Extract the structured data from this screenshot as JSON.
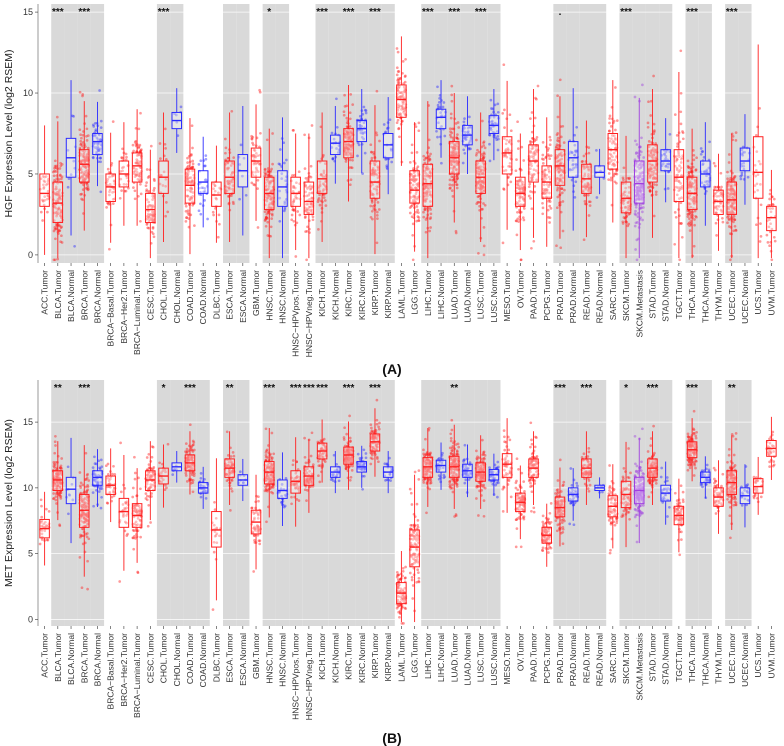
{
  "colors": {
    "tumor": "#ff2020",
    "normal": "#2b2bff",
    "metastasis": "#a040e0",
    "shade": "#d9d9d9",
    "grid": "#ececec"
  },
  "chart_data": [
    {
      "type": "box",
      "panel_label": "(A)",
      "ylabel": "HGF Expression Level (log2 RSEM)",
      "ylim": [
        -0.5,
        15.5
      ],
      "yticks": [
        "0",
        "5",
        "10",
        "15"
      ],
      "categories": [
        "ACC.Tumor",
        "BLCA.Tumor",
        "BLCA.Normal",
        "BRCA.Tumor",
        "BRCA.Normal",
        "BRCA−Basal.Tumor",
        "BRCA−Her2.Tumor",
        "BRCA−Luminal.Tumor",
        "CESC.Tumor",
        "CHOL.Tumor",
        "CHOL.Normal",
        "COAD.Tumor",
        "COAD.Normal",
        "DLBC.Tumor",
        "ESCA.Tumor",
        "ESCA.Normal",
        "GBM.Tumor",
        "HNSC.Tumor",
        "HNSC.Normal",
        "HNSC−HPVpos.Tumor",
        "HNSC−HPVneg.Tumor",
        "KICH.Tumor",
        "KICH.Normal",
        "KIRC.Tumor",
        "KIRC.Normal",
        "KIRP.Tumor",
        "KIRP.Normal",
        "LAML.Tumor",
        "LGG.Tumor",
        "LIHC.Tumor",
        "LIHC.Normal",
        "LUAD.Tumor",
        "LUAD.Normal",
        "LUSC.Tumor",
        "LUSC.Normal",
        "MESO.Tumor",
        "OV.Tumor",
        "PAAD.Tumor",
        "PCPG.Tumor",
        "PRAD.Tumor",
        "PRAD.Normal",
        "READ.Tumor",
        "READ.Normal",
        "SARC.Tumor",
        "SKCM.Tumor",
        "SKCM.Metastasis",
        "STAD.Tumor",
        "STAD.Normal",
        "TGCT.Tumor",
        "THCA.Tumor",
        "THCA.Normal",
        "THYM.Tumor",
        "UCEC.Tumor",
        "UCEC.Normal",
        "UCS.Tumor",
        "UVM.Tumor"
      ],
      "types": [
        "T",
        "T",
        "N",
        "T",
        "N",
        "T",
        "T",
        "T",
        "T",
        "T",
        "N",
        "T",
        "N",
        "T",
        "T",
        "N",
        "T",
        "T",
        "N",
        "T",
        "T",
        "T",
        "N",
        "T",
        "N",
        "T",
        "N",
        "T",
        "T",
        "T",
        "N",
        "T",
        "N",
        "T",
        "N",
        "T",
        "T",
        "T",
        "T",
        "T",
        "N",
        "T",
        "N",
        "T",
        "T",
        "M",
        "T",
        "N",
        "T",
        "T",
        "N",
        "T",
        "T",
        "N",
        "T",
        "T"
      ],
      "shaded": [
        false,
        true,
        true,
        true,
        true,
        false,
        false,
        false,
        false,
        true,
        true,
        false,
        false,
        false,
        true,
        true,
        false,
        true,
        true,
        false,
        false,
        true,
        true,
        true,
        true,
        true,
        true,
        false,
        false,
        true,
        true,
        true,
        true,
        true,
        true,
        false,
        false,
        false,
        false,
        true,
        true,
        true,
        true,
        false,
        true,
        true,
        true,
        true,
        false,
        true,
        true,
        false,
        true,
        true,
        false,
        false
      ],
      "q1": [
        3.0,
        2.0,
        4.8,
        4.5,
        6.2,
        3.3,
        4.2,
        4.5,
        2.0,
        3.8,
        7.8,
        3.2,
        3.8,
        3.0,
        3.8,
        4.2,
        4.8,
        2.8,
        3.0,
        3.0,
        2.5,
        3.8,
        6.2,
        6.0,
        7.0,
        3.5,
        6.0,
        8.5,
        3.2,
        3.0,
        7.8,
        5.0,
        6.8,
        3.8,
        7.5,
        5.0,
        3.0,
        4.5,
        3.5,
        4.3,
        4.8,
        3.8,
        4.8,
        5.3,
        2.6,
        3.2,
        4.5,
        5.2,
        3.3,
        2.8,
        4.2,
        2.5,
        2.5,
        5.2,
        3.5,
        1.5
      ],
      "median": [
        3.8,
        3.2,
        6.0,
        5.6,
        7.0,
        4.2,
        5.0,
        5.5,
        2.8,
        4.8,
        8.3,
        4.3,
        4.5,
        3.7,
        4.8,
        5.2,
        5.8,
        3.8,
        4.2,
        3.8,
        3.3,
        4.7,
        6.9,
        7.0,
        7.8,
        4.5,
        6.8,
        9.6,
        4.0,
        4.4,
        8.5,
        6.0,
        7.4,
        4.8,
        8.0,
        6.3,
        3.8,
        5.8,
        4.5,
        5.5,
        6.0,
        4.7,
        5.1,
        6.5,
        3.5,
        4.4,
        5.8,
        5.8,
        4.8,
        3.8,
        5.0,
        3.3,
        3.4,
        5.8,
        5.1,
        2.3
      ],
      "q3": [
        5.0,
        4.5,
        7.2,
        6.5,
        7.5,
        5.0,
        5.8,
        6.3,
        3.8,
        5.8,
        8.8,
        5.3,
        5.2,
        4.5,
        5.8,
        6.2,
        6.6,
        4.8,
        5.2,
        4.8,
        4.5,
        5.8,
        7.4,
        7.8,
        8.3,
        5.8,
        7.5,
        10.5,
        5.2,
        5.6,
        9.0,
        7.0,
        8.0,
        5.8,
        8.6,
        7.3,
        4.8,
        6.8,
        5.5,
        6.5,
        7.0,
        5.6,
        5.5,
        7.5,
        4.5,
        5.8,
        6.8,
        6.5,
        6.5,
        4.8,
        5.8,
        4.0,
        4.5,
        6.6,
        7.3,
        3.0
      ],
      "n": [
        30,
        110,
        10,
        130,
        50,
        40,
        30,
        80,
        70,
        20,
        6,
        90,
        30,
        20,
        60,
        8,
        50,
        110,
        25,
        40,
        70,
        50,
        20,
        100,
        40,
        80,
        20,
        90,
        100,
        100,
        30,
        130,
        40,
        120,
        40,
        50,
        90,
        80,
        80,
        100,
        35,
        60,
        6,
        70,
        60,
        160,
        100,
        25,
        70,
        120,
        35,
        50,
        120,
        20,
        25,
        30
      ],
      "significance": [
        "",
        "***",
        "",
        "***",
        "",
        "",
        "",
        "",
        "",
        "***",
        "",
        "",
        "",
        "",
        "",
        "",
        "",
        "*",
        "",
        "",
        "",
        "***",
        "",
        "***",
        "",
        "***",
        "",
        "",
        "",
        "***",
        "",
        "***",
        "",
        "***",
        "",
        "",
        "",
        "",
        "",
        ".",
        "",
        "",
        "",
        "",
        "***",
        "",
        "",
        "",
        "",
        "***",
        "",
        "",
        "***",
        "",
        "",
        ""
      ]
    },
    {
      "type": "box",
      "panel_label": "(B)",
      "ylabel": "MET Expression Level (log2 RSEM)",
      "ylim": [
        -0.5,
        18.2
      ],
      "yticks": [
        "0",
        "5",
        "10",
        "15"
      ],
      "categories": [
        "ACC.Tumor",
        "BLCA.Tumor",
        "BLCA.Normal",
        "BRCA.Tumor",
        "BRCA.Normal",
        "BRCA−Basal.Tumor",
        "BRCA−Her2.Tumor",
        "BRCA−Luminal.Tumor",
        "CESC.Tumor",
        "CHOL.Tumor",
        "CHOL.Normal",
        "COAD.Tumor",
        "COAD.Normal",
        "DLBC.Tumor",
        "ESCA.Tumor",
        "ESCA.Normal",
        "GBM.Tumor",
        "HNSC.Tumor",
        "HNSC.Normal",
        "HNSC−HPVpos.Tumor",
        "HNSC−HPVneg.Tumor",
        "KICH.Tumor",
        "KICH.Normal",
        "KIRC.Tumor",
        "KIRC.Normal",
        "KIRP.Tumor",
        "KIRP.Normal",
        "LAML.Tumor",
        "LGG.Tumor",
        "LIHC.Tumor",
        "LIHC.Normal",
        "LUAD.Tumor",
        "LUAD.Normal",
        "LUSC.Tumor",
        "LUSC.Normal",
        "MESO.Tumor",
        "OV.Tumor",
        "PAAD.Tumor",
        "PCPG.Tumor",
        "PRAD.Tumor",
        "PRAD.Normal",
        "READ.Tumor",
        "READ.Normal",
        "SARC.Tumor",
        "SKCM.Tumor",
        "SKCM.Metastasis",
        "STAD.Tumor",
        "STAD.Normal",
        "TGCT.Tumor",
        "THCA.Tumor",
        "THCA.Normal",
        "THYM.Tumor",
        "UCEC.Tumor",
        "UCEC.Normal",
        "UCS.Tumor",
        "UVM.Tumor"
      ],
      "types": [
        "T",
        "T",
        "N",
        "T",
        "N",
        "T",
        "T",
        "T",
        "T",
        "T",
        "N",
        "T",
        "N",
        "T",
        "T",
        "N",
        "T",
        "T",
        "N",
        "T",
        "T",
        "T",
        "N",
        "T",
        "N",
        "T",
        "N",
        "T",
        "T",
        "T",
        "N",
        "T",
        "N",
        "T",
        "N",
        "T",
        "T",
        "T",
        "T",
        "T",
        "N",
        "T",
        "N",
        "T",
        "T",
        "M",
        "T",
        "N",
        "T",
        "T",
        "N",
        "T",
        "T",
        "N",
        "T",
        "T"
      ],
      "shaded": [
        false,
        true,
        true,
        true,
        true,
        false,
        false,
        false,
        false,
        true,
        true,
        true,
        true,
        false,
        true,
        true,
        false,
        true,
        true,
        true,
        true,
        true,
        true,
        true,
        true,
        true,
        true,
        false,
        false,
        true,
        true,
        true,
        true,
        true,
        true,
        false,
        false,
        false,
        false,
        true,
        true,
        true,
        true,
        false,
        true,
        true,
        true,
        true,
        false,
        true,
        true,
        false,
        true,
        true,
        false,
        false
      ],
      "q1": [
        6.2,
        9.8,
        8.8,
        7.0,
        10.2,
        9.5,
        7.0,
        7.0,
        9.8,
        10.3,
        11.3,
        11.3,
        9.6,
        5.5,
        10.8,
        10.2,
        6.5,
        10.3,
        9.2,
        9.6,
        10.2,
        12.2,
        10.8,
        11.8,
        11.2,
        12.8,
        10.8,
        1.2,
        4.0,
        10.8,
        11.2,
        10.8,
        10.8,
        10.5,
        10.6,
        10.8,
        8.2,
        10.8,
        5.8,
        7.8,
        9.0,
        10.8,
        9.8,
        7.8,
        8.5,
        8.8,
        10.8,
        9.0,
        7.2,
        12.3,
        10.4,
        8.6,
        9.5,
        8.8,
        9.6,
        12.4
      ],
      "median": [
        6.9,
        10.6,
        9.9,
        8.3,
        10.8,
        10.2,
        8.2,
        7.9,
        10.6,
        10.9,
        11.6,
        11.9,
        10.0,
        6.8,
        11.5,
        10.6,
        7.4,
        11.2,
        9.8,
        10.5,
        10.9,
        12.8,
        11.2,
        12.5,
        11.6,
        13.5,
        11.2,
        2.0,
        5.5,
        11.6,
        11.7,
        11.6,
        11.3,
        11.2,
        11.0,
        11.8,
        8.9,
        11.5,
        6.4,
        8.5,
        9.5,
        11.5,
        10.0,
        8.6,
        9.5,
        9.8,
        11.5,
        9.6,
        7.9,
        12.9,
        10.8,
        9.3,
        10.4,
        9.4,
        10.1,
        13.0
      ],
      "q3": [
        7.6,
        11.3,
        10.8,
        9.5,
        11.3,
        10.9,
        9.2,
        8.8,
        11.3,
        11.5,
        11.9,
        12.5,
        10.4,
        8.2,
        12.2,
        11.0,
        8.3,
        12.0,
        10.6,
        11.3,
        11.6,
        13.4,
        11.6,
        13.1,
        12.0,
        14.1,
        11.6,
        2.8,
        6.8,
        12.3,
        12.1,
        12.4,
        11.8,
        11.9,
        11.4,
        12.6,
        9.6,
        12.2,
        7.0,
        9.3,
        10.0,
        12.2,
        10.2,
        9.4,
        10.5,
        10.8,
        12.2,
        10.2,
        8.6,
        13.5,
        11.2,
        10.0,
        11.3,
        10.0,
        10.7,
        13.6
      ],
      "n": [
        30,
        110,
        10,
        130,
        50,
        40,
        30,
        80,
        70,
        20,
        6,
        90,
        30,
        20,
        60,
        8,
        50,
        110,
        25,
        40,
        70,
        50,
        20,
        100,
        40,
        80,
        20,
        90,
        100,
        100,
        30,
        130,
        40,
        120,
        40,
        50,
        90,
        80,
        80,
        100,
        35,
        60,
        6,
        70,
        60,
        160,
        100,
        25,
        70,
        120,
        35,
        50,
        120,
        20,
        25,
        30
      ],
      "significance": [
        "",
        "**",
        "",
        "***",
        "",
        "",
        "",
        "",
        "",
        "*",
        "",
        "***",
        "",
        "",
        "**",
        "",
        "",
        "***",
        "",
        "***",
        "***",
        "***",
        "",
        "***",
        "",
        "***",
        "",
        "",
        "",
        "",
        "",
        "**",
        "",
        "",
        "",
        "",
        "",
        "",
        "",
        "***",
        "",
        "***",
        "",
        "",
        "*",
        "",
        "***",
        "",
        "",
        "***",
        "",
        "",
        "**",
        "",
        "",
        ""
      ]
    }
  ]
}
